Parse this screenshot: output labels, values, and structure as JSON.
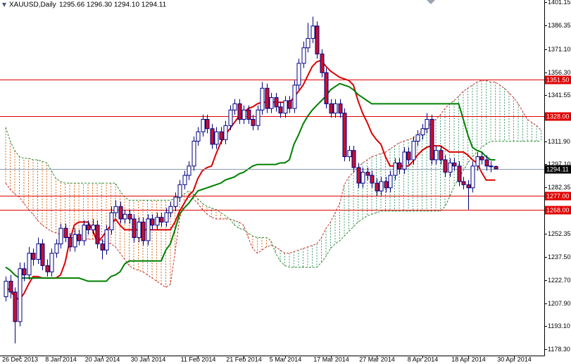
{
  "chart_data": {
    "type": "candlestick",
    "title": "XAUUSD,Daily",
    "subtitle": "1295.66 1296.30 1294.10 1294.11",
    "x": [
      null,
      null,
      null,
      "26 Dec 2013",
      null,
      null,
      null,
      null,
      null,
      null,
      null,
      null,
      "8 Jan 2014",
      null,
      null,
      null,
      null,
      null,
      null,
      null,
      null,
      "20 Jan 2014",
      null,
      null,
      null,
      null,
      null,
      null,
      null,
      null,
      null,
      "30 Jan 2014",
      null,
      null,
      null,
      null,
      null,
      null,
      null,
      null,
      null,
      null,
      "11 Feb 2014",
      null,
      null,
      null,
      null,
      null,
      null,
      null,
      null,
      null,
      "21 Feb 2014",
      null,
      null,
      null,
      null,
      null,
      null,
      null,
      null,
      "5 Mar 2014",
      null,
      null,
      null,
      null,
      null,
      null,
      null,
      null,
      null,
      "17 Mar 2014",
      null,
      null,
      null,
      null,
      null,
      null,
      null,
      null,
      null,
      "27 Mar 2014",
      null,
      null,
      null,
      null,
      null,
      null,
      null,
      null,
      null,
      "8 Apr 2014",
      null,
      null,
      null,
      null,
      null,
      null,
      null,
      null,
      null,
      "18 Apr 2014",
      null,
      null,
      null,
      null,
      null,
      null,
      null,
      null,
      null,
      "30 Apr 2014",
      null,
      null,
      null,
      null,
      null,
      null
    ],
    "open": [
      1212,
      1222,
      1215,
      1196,
      1230,
      1226,
      1240,
      1236,
      1246,
      1232,
      1228,
      1240,
      1246,
      1256,
      1250,
      1244,
      1252,
      1248,
      1258,
      1255,
      1258,
      1246,
      1242,
      1255,
      1266,
      1270,
      1262,
      1265,
      1262,
      1250,
      1260,
      1248,
      1262,
      1258,
      1263,
      1260,
      1266,
      1270,
      1276,
      1284,
      1290,
      1296,
      1312,
      1318,
      1326,
      1320,
      1310,
      1318,
      1313,
      1322,
      1332,
      1336,
      1326,
      1332,
      1326,
      1322,
      1332,
      1346,
      1333,
      1340,
      1334,
      1330,
      1338,
      1333,
      1348,
      1362,
      1372,
      1378,
      1386,
      1368,
      1356,
      1336,
      1330,
      1336,
      1330,
      1302,
      1306,
      1295,
      1285,
      1292,
      1290,
      1285,
      1280,
      1286,
      1282,
      1290,
      1298,
      1294,
      1305,
      1300,
      1312,
      1316,
      1320,
      1326,
      1300,
      1306,
      1300,
      1292,
      1298,
      1296,
      1286,
      1284,
      1282,
      1296,
      1302,
      1300,
      1296,
      1295.66,
      null,
      null,
      null,
      null,
      null,
      null,
      null,
      null,
      null,
      null
    ],
    "high": [
      1225,
      1226,
      1218,
      1234,
      1234,
      1244,
      1243,
      1250,
      1249,
      1236,
      1243,
      1249,
      1259,
      1259,
      1253,
      1256,
      1255,
      1261,
      1261,
      1262,
      1261,
      1249,
      1258,
      1270,
      1274,
      1273,
      1268,
      1268,
      1265,
      1263,
      1263,
      1265,
      1265,
      1266,
      1266,
      1269,
      1273,
      1279,
      1287,
      1293,
      1299,
      1315,
      1321,
      1329,
      1329,
      1323,
      1321,
      1321,
      1325,
      1335,
      1339,
      1339,
      1335,
      1335,
      1329,
      1335,
      1350,
      1349,
      1343,
      1343,
      1337,
      1341,
      1341,
      1351,
      1365,
      1376,
      1388,
      1392,
      1389,
      1371,
      1359,
      1339,
      1339,
      1339,
      1333,
      1309,
      1309,
      1298,
      1295,
      1295,
      1293,
      1288,
      1289,
      1289,
      1293,
      1301,
      1301,
      1308,
      1308,
      1315,
      1319,
      1323,
      1330,
      1329,
      1309,
      1309,
      1303,
      1301,
      1301,
      1299,
      1289,
      1287,
      1299,
      1305,
      1305,
      1303,
      1299,
      1296.3,
      null,
      null,
      null,
      null,
      null,
      null,
      null,
      null,
      null,
      null
    ],
    "low": [
      1209,
      1211,
      1182,
      1193,
      1222,
      1223,
      1232,
      1233,
      1229,
      1225,
      1225,
      1237,
      1243,
      1247,
      1241,
      1241,
      1245,
      1245,
      1252,
      1252,
      1243,
      1236,
      1239,
      1252,
      1263,
      1259,
      1259,
      1259,
      1247,
      1247,
      1245,
      1245,
      1255,
      1255,
      1257,
      1257,
      1263,
      1267,
      1273,
      1281,
      1287,
      1293,
      1309,
      1315,
      1317,
      1307,
      1307,
      1310,
      1310,
      1319,
      1329,
      1323,
      1323,
      1323,
      1319,
      1319,
      1329,
      1330,
      1330,
      1331,
      1327,
      1327,
      1330,
      1330,
      1345,
      1359,
      1369,
      1375,
      1365,
      1353,
      1333,
      1327,
      1327,
      1327,
      1299,
      1299,
      1292,
      1282,
      1282,
      1287,
      1282,
      1277,
      1277,
      1279,
      1279,
      1287,
      1291,
      1291,
      1297,
      1297,
      1309,
      1313,
      1317,
      1297,
      1297,
      1297,
      1289,
      1289,
      1293,
      1283,
      1281,
      1268,
      1279,
      1293,
      1297,
      1293,
      1292,
      1294.1,
      null,
      null,
      null,
      null,
      null,
      null,
      null,
      null,
      null,
      null
    ],
    "close": [
      1222,
      1215,
      1196,
      1230,
      1226,
      1240,
      1236,
      1246,
      1232,
      1228,
      1240,
      1246,
      1256,
      1250,
      1244,
      1252,
      1248,
      1258,
      1255,
      1258,
      1246,
      1242,
      1255,
      1266,
      1270,
      1262,
      1265,
      1262,
      1250,
      1260,
      1248,
      1262,
      1258,
      1263,
      1260,
      1266,
      1270,
      1276,
      1284,
      1290,
      1296,
      1312,
      1318,
      1326,
      1320,
      1310,
      1318,
      1313,
      1322,
      1332,
      1336,
      1326,
      1332,
      1326,
      1322,
      1332,
      1346,
      1333,
      1340,
      1334,
      1330,
      1338,
      1333,
      1348,
      1362,
      1372,
      1378,
      1386,
      1368,
      1356,
      1336,
      1330,
      1336,
      1330,
      1302,
      1306,
      1295,
      1285,
      1292,
      1290,
      1285,
      1280,
      1286,
      1282,
      1290,
      1298,
      1294,
      1305,
      1300,
      1312,
      1316,
      1320,
      1326,
      1300,
      1306,
      1300,
      1292,
      1298,
      1296,
      1286,
      1284,
      1282,
      1296,
      1302,
      1300,
      1296,
      1295.66,
      1294.11,
      null,
      null,
      null,
      null,
      null,
      null,
      null,
      null,
      null,
      null
    ],
    "up_color": "#ffffff",
    "down_color": "#c8102e",
    "outline_color": "#000080",
    "series": [
      {
        "color": "#dd0000",
        "values": [
          1218,
          1216,
          1212,
          1210,
          1214,
          1220,
          1225,
          1225,
          1224,
          1224,
          1224,
          1224,
          1226,
          1234,
          1248,
          1258,
          1260,
          1260,
          1260,
          1255,
          1247,
          1250,
          1254,
          1258,
          1262,
          1258,
          1255,
          1255,
          1255,
          1255,
          1255,
          1255,
          1255,
          1255,
          1255,
          1255,
          1255,
          1260,
          1267,
          1272,
          1277,
          1280,
          1288,
          1293,
          1295,
          1296,
          1304,
          1311,
          1316,
          1320,
          1324,
          1328,
          1330,
          1333,
          1334,
          1336,
          1337,
          1337,
          1337,
          1337,
          1337,
          1337,
          1337,
          1340,
          1344,
          1348,
          1354,
          1360,
          1363,
          1364,
          1360,
          1357,
          1355,
          1353,
          1352,
          1351,
          1348,
          1338,
          1330,
          1324,
          1317,
          1313,
          1310,
          1302,
          1296,
          1296,
          1296,
          1296,
          1296,
          1299,
          1303,
          1306,
          1308,
          1309,
          1309,
          1309,
          1307,
          1305,
          1305,
          1305,
          1305,
          1303,
          1300,
          1298,
          1292,
          1287,
          1287,
          1287,
          null,
          null,
          null,
          null,
          null,
          null,
          null,
          null,
          null,
          null
        ]
      },
      {
        "color": "#008000",
        "values": [
          1231,
          1229,
          1226,
          1224,
          1224,
          1224,
          1224,
          1224,
          1224,
          1224,
          1224,
          1224,
          1224,
          1224,
          1224,
          1224,
          1224,
          1223,
          1222,
          1222,
          1222,
          1222,
          1222,
          1225,
          1226,
          1228,
          1233,
          1235,
          1235,
          1235,
          1235,
          1235,
          1235,
          1235,
          1235,
          1242,
          1246,
          1255,
          1265,
          1269,
          1272,
          1276,
          1280,
          1281,
          1282,
          1283,
          1284,
          1285,
          1287,
          1288,
          1289,
          1291,
          1292,
          1294,
          1296,
          1297,
          1297,
          1297,
          1297,
          1297,
          1298,
          1298,
          1300,
          1310,
          1316,
          1323,
          1328,
          1332,
          1335,
          1338,
          1341,
          1345,
          1347,
          1349,
          1348,
          1347,
          1345,
          1342,
          1340,
          1338,
          1336,
          1336,
          1336,
          1336,
          1336,
          1336,
          1336,
          1336,
          1336,
          1336,
          1336,
          1336,
          1336,
          1336,
          1336,
          1336,
          1336,
          1336,
          1336,
          1336,
          1326,
          1316,
          1308,
          1306,
          1305,
          1302,
          1300,
          1300,
          null,
          null,
          null,
          null,
          null,
          null,
          null,
          null,
          null,
          null
        ]
      }
    ],
    "cloud": {
      "span_a": [
        1285,
        1281,
        1278,
        1276,
        1272,
        1268,
        1265,
        1261,
        1258,
        1256,
        1254,
        1253,
        1252,
        1251,
        1250,
        1250,
        1250,
        1249,
        1249,
        1249,
        1249,
        1248,
        1247,
        1246,
        1244,
        1240,
        1236,
        1232,
        1230,
        1229,
        1228,
        1226,
        1224,
        1222,
        1220,
        1218,
        1220,
        1240,
        1262,
        1272,
        1276,
        1275,
        1272,
        1268,
        1265,
        1263,
        1262,
        1262,
        1262,
        1262,
        1261,
        1260,
        1258,
        1250,
        1243,
        1240,
        1242,
        1244,
        1245,
        1244,
        1242,
        1240,
        1240,
        1241,
        1242,
        1243,
        1244,
        1245,
        1246,
        1250,
        1256,
        1260,
        1266,
        1272,
        1284,
        1289,
        1292,
        1295,
        1298,
        1300,
        1302,
        1303,
        1304,
        1305,
        1307,
        1309,
        1311,
        1312,
        1313,
        1314,
        1316,
        1318,
        1320,
        1324,
        1326,
        1329,
        1333,
        1336,
        1338,
        1341,
        1344,
        1346,
        1348,
        1350,
        1351,
        1351,
        1350,
        1350,
        1348,
        1346,
        1343,
        1340,
        1336,
        1331,
        1326,
        1324,
        1322,
        1319
      ],
      "span_b": [
        1321,
        1312,
        1306,
        1302,
        1301,
        1301,
        1300,
        1300,
        1299,
        1298,
        1293,
        1288,
        1286,
        1285,
        1285,
        1285,
        1285,
        1285,
        1285,
        1285,
        1285,
        1285,
        1285,
        1285,
        1285,
        1280,
        1276,
        1274,
        1274,
        1274,
        1274,
        1274,
        1274,
        1274,
        1274,
        1274,
        1274,
        1275,
        1276,
        1278,
        1280,
        1278,
        1275,
        1272,
        1270,
        1269,
        1268,
        1266,
        1264,
        1262,
        1258,
        1256,
        1255,
        1253,
        1251,
        1250,
        1250,
        1250,
        1248,
        1240,
        1235,
        1232,
        1231,
        1231,
        1231,
        1231,
        1231,
        1231,
        1231,
        1234,
        1238,
        1243,
        1246,
        1248,
        1251,
        1254,
        1257,
        1260,
        1262,
        1264,
        1265,
        1266,
        1267,
        1267,
        1267,
        1267,
        1267,
        1267,
        1267,
        1267,
        1267,
        1267,
        1267,
        1267,
        1267,
        1267,
        1270,
        1276,
        1283,
        1288,
        1293,
        1298,
        1302,
        1305,
        1308,
        1310,
        1312,
        1312,
        1312,
        1312,
        1312,
        1312,
        1312,
        1312,
        1312,
        1312,
        1312,
        1312
      ],
      "up_color": "#3c9a6e",
      "down_color": "#d2691e",
      "span_a_color": "#cc3333",
      "span_b_color": "#2e8b2e"
    },
    "levels": [
      {
        "value": 1351.5,
        "label": "1351.50"
      },
      {
        "value": 1328,
        "label": "1328.00"
      },
      {
        "value": 1277,
        "label": "1277.00"
      },
      {
        "value": 1268,
        "label": "1268.00"
      }
    ],
    "level_color": "#e00000",
    "last_price": 1294.11,
    "last_price_color": "#8a9bb0",
    "ylim": [
      1174.2,
      1402.7
    ],
    "yticks": [
      1401.15,
      1386.35,
      {
        "value": 1371.1,
        "label": "1371.10"
      },
      {
        "value": 1356.3,
        "label": "1356.30"
      },
      1341.55,
      {
        "value": 1311.9,
        "label": "1311.90"
      },
      {
        "value": 1297.1,
        "label": "1297.10"
      },
      1282.35,
      1252.35,
      {
        "value": 1237.5,
        "label": "1237.50"
      },
      {
        "value": 1222.7,
        "label": "1222.70"
      },
      {
        "value": 1207.9,
        "label": "1207.90"
      },
      {
        "value": 1193.1,
        "label": "1193.10"
      },
      {
        "value": 1178.3,
        "label": "1178.30"
      }
    ]
  }
}
